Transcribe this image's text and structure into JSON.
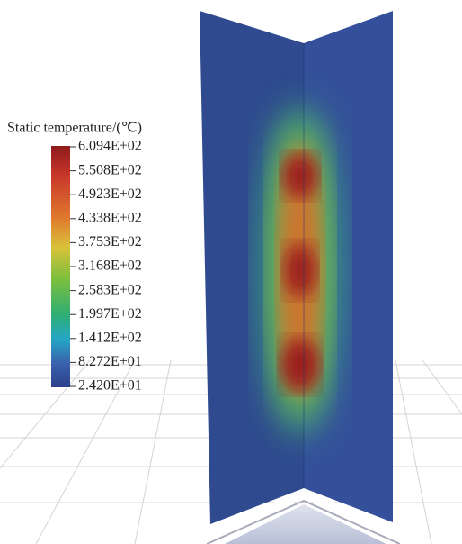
{
  "legend": {
    "title": "Static temperature/(℃)",
    "labels": [
      "6.094E+02",
      "5.508E+02",
      "4.923E+02",
      "4.338E+02",
      "3.753E+02",
      "3.168E+02",
      "2.583E+02",
      "1.997E+02",
      "1.412E+02",
      "8.272E+01",
      "2.420E+01"
    ]
  }
}
